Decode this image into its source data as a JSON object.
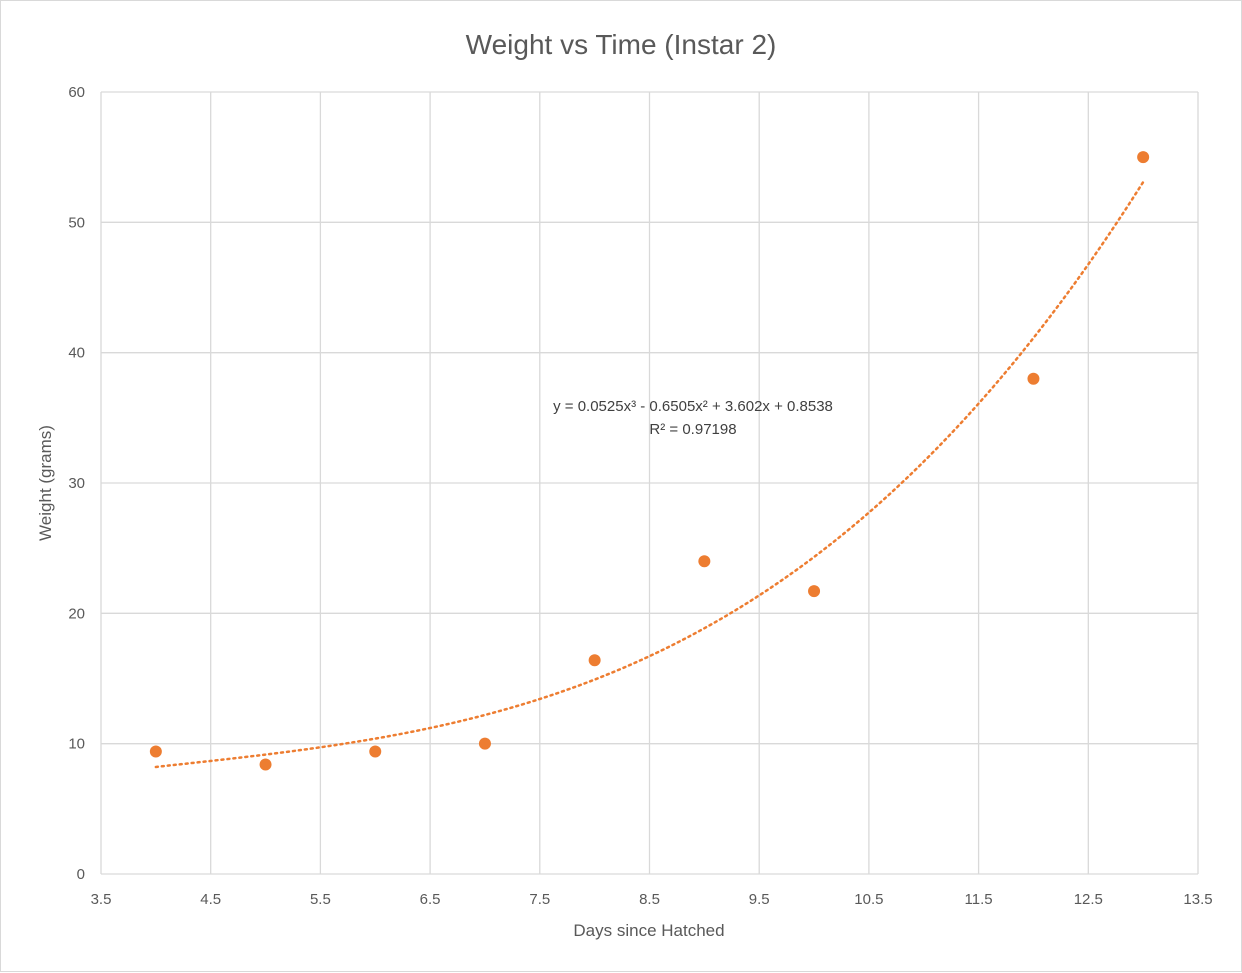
{
  "chart_data": {
    "type": "scatter",
    "title": "Weight vs Time  (Instar 2)",
    "xlabel": "Days since Hatched",
    "ylabel": "Weight (grams)",
    "xlim": [
      3.5,
      13.5
    ],
    "ylim": [
      0,
      60
    ],
    "x_ticks": [
      "3.5",
      "4.5",
      "5.5",
      "6.5",
      "7.5",
      "8.5",
      "9.5",
      "10.5",
      "11.5",
      "12.5",
      "13.5"
    ],
    "y_ticks": [
      "0",
      "10",
      "20",
      "30",
      "40",
      "50",
      "60"
    ],
    "grid": true,
    "legend": "none",
    "marker_color": "#ed7d31",
    "trendline_color": "#ed7d31",
    "series": [
      {
        "x": [
          4,
          5,
          6,
          7,
          8,
          9,
          10,
          12,
          13
        ],
        "y": [
          9.4,
          8.4,
          9.4,
          10.0,
          16.4,
          24.0,
          21.7,
          38.0,
          55.0
        ]
      }
    ],
    "trendline": {
      "type": "polynomial",
      "order": 3,
      "coefficients": [
        0.0525,
        -0.6505,
        3.602,
        0.8538
      ],
      "equation_text": "y = 0.0525x³ - 0.6505x² + 3.602x + 0.8538",
      "r2_text": "R² = 0.97198",
      "x_range": [
        4,
        13
      ]
    }
  }
}
